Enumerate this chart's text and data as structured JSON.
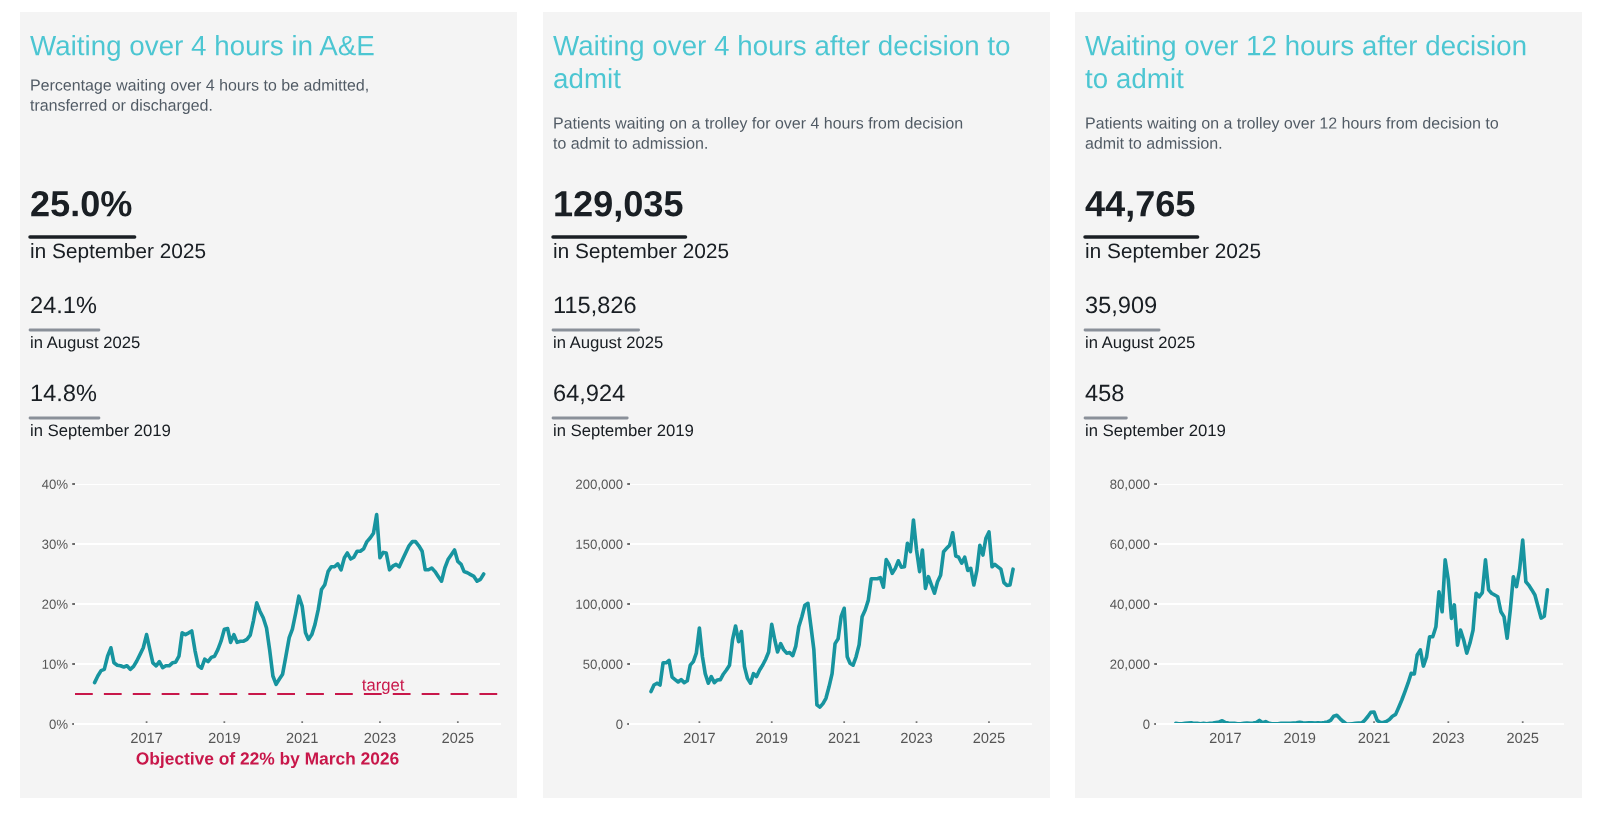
{
  "chart_data": [
    {
      "type": "line",
      "title": "Waiting over 4 hours in A&E",
      "subtitle": "Percentage waiting over 4 hours to be admitted, transferred or discharged.",
      "annotations": [
        "25.0%",
        "in September 2025",
        "24.1%",
        "in August 2025",
        "14.8%",
        "in September 2019",
        "Objective of 22% by March 2026"
      ],
      "x": [
        "2015-09",
        "2015-10",
        "2015-11",
        "2015-12",
        "2016-01",
        "2016-02",
        "2016-03",
        "2016-04",
        "2016-05",
        "2016-06",
        "2016-07",
        "2016-08",
        "2016-09",
        "2016-10",
        "2016-11",
        "2016-12",
        "2017-01",
        "2017-02",
        "2017-03",
        "2017-04",
        "2017-05",
        "2017-06",
        "2017-07",
        "2017-08",
        "2017-09",
        "2017-10",
        "2017-11",
        "2017-12",
        "2018-01",
        "2018-02",
        "2018-03",
        "2018-04",
        "2018-05",
        "2018-06",
        "2018-07",
        "2018-08",
        "2018-09",
        "2018-10",
        "2018-11",
        "2018-12",
        "2019-01",
        "2019-02",
        "2019-03",
        "2019-04",
        "2019-05",
        "2019-06",
        "2019-07",
        "2019-08",
        "2019-09",
        "2019-10",
        "2019-11",
        "2019-12",
        "2020-01",
        "2020-02",
        "2020-03",
        "2020-04",
        "2020-05",
        "2020-06",
        "2020-07",
        "2020-08",
        "2020-09",
        "2020-10",
        "2020-11",
        "2020-12",
        "2021-01",
        "2021-02",
        "2021-03",
        "2021-04",
        "2021-05",
        "2021-06",
        "2021-07",
        "2021-08",
        "2021-09",
        "2021-10",
        "2021-11",
        "2021-12",
        "2022-01",
        "2022-02",
        "2022-03",
        "2022-04",
        "2022-05",
        "2022-06",
        "2022-07",
        "2022-08",
        "2022-09",
        "2022-10",
        "2022-11",
        "2022-12",
        "2023-01",
        "2023-02",
        "2023-03",
        "2023-04",
        "2023-05",
        "2023-06",
        "2023-07",
        "2023-08",
        "2023-09",
        "2023-10",
        "2023-11",
        "2023-12",
        "2024-01",
        "2024-02",
        "2024-03",
        "2024-04",
        "2024-05",
        "2024-06",
        "2024-07",
        "2024-08",
        "2024-09",
        "2024-10",
        "2024-11",
        "2024-12",
        "2025-01",
        "2025-02",
        "2025-03",
        "2025-04",
        "2025-05",
        "2025-06",
        "2025-07",
        "2025-08",
        "2025-09"
      ],
      "series": [
        {
          "color": "#17949f",
          "values": [
            6.9,
            8.0,
            8.9,
            9.1,
            11.3,
            12.7,
            10.2,
            9.8,
            9.7,
            9.5,
            9.7,
            9.1,
            9.6,
            10.5,
            11.6,
            12.7,
            14.9,
            12.4,
            10.2,
            9.7,
            10.4,
            9.4,
            9.7,
            9.7,
            10.2,
            10.3,
            11.3,
            15.2,
            14.9,
            15.2,
            15.5,
            12.2,
            9.7,
            9.3,
            10.8,
            10.4,
            11.1,
            11.3,
            12.4,
            13.8,
            15.8,
            15.9,
            13.6,
            14.9,
            13.6,
            13.8,
            13.8,
            14.1,
            14.8,
            17.2,
            20.2,
            18.8,
            17.7,
            16.0,
            12.4,
            8.0,
            6.6,
            7.5,
            8.3,
            11.3,
            14.4,
            15.8,
            18.5,
            21.3,
            19.6,
            15.2,
            14.1,
            14.9,
            16.6,
            19.1,
            22.4,
            23.2,
            25.4,
            26.2,
            26.2,
            26.7,
            25.7,
            27.7,
            28.5,
            27.5,
            27.8,
            28.8,
            28.8,
            29.2,
            30.4,
            31.0,
            31.8,
            34.9,
            27.7,
            28.6,
            28.5,
            25.7,
            26.3,
            26.6,
            26.2,
            27.4,
            28.6,
            29.7,
            30.4,
            30.4,
            29.7,
            28.8,
            25.7,
            25.7,
            26.0,
            25.4,
            24.6,
            23.8,
            26.0,
            27.4,
            28.2,
            29.0,
            27.1,
            26.6,
            25.4,
            25.2,
            24.9,
            24.6,
            23.8,
            24.1,
            25.0
          ]
        }
      ],
      "xlim": [
        "2015-03",
        "2026-02"
      ],
      "xticks": [
        "2017",
        "2019",
        "2021",
        "2023",
        "2025"
      ],
      "ylim": [
        0,
        40
      ],
      "yticks": [
        {
          "value": 0,
          "label": "0%"
        },
        {
          "value": 10,
          "label": "10%"
        },
        {
          "value": 20,
          "label": "20%"
        },
        {
          "value": 30,
          "label": "30%"
        },
        {
          "value": 40,
          "label": "40%"
        }
      ],
      "grid": "y",
      "line_style": "solid",
      "marker": "none",
      "ref_lines": [
        {
          "axis": "y",
          "value": 5,
          "label": "target",
          "color": "#c8174a",
          "line_style": "dashed"
        }
      ]
    },
    {
      "type": "line",
      "title": "Waiting over 4 hours after decision to admit",
      "subtitle": "Patients waiting on a trolley for over 4 hours from decision to admit to admission.",
      "annotations": [
        "129,035",
        "in September 2025",
        "115,826",
        "in August 2025",
        "64,924",
        "in September 2019"
      ],
      "x": [
        "2015-09",
        "2015-10",
        "2015-11",
        "2015-12",
        "2016-01",
        "2016-02",
        "2016-03",
        "2016-04",
        "2016-05",
        "2016-06",
        "2016-07",
        "2016-08",
        "2016-09",
        "2016-10",
        "2016-11",
        "2016-12",
        "2017-01",
        "2017-02",
        "2017-03",
        "2017-04",
        "2017-05",
        "2017-06",
        "2017-07",
        "2017-08",
        "2017-09",
        "2017-10",
        "2017-11",
        "2017-12",
        "2018-01",
        "2018-02",
        "2018-03",
        "2018-04",
        "2018-05",
        "2018-06",
        "2018-07",
        "2018-08",
        "2018-09",
        "2018-10",
        "2018-11",
        "2018-12",
        "2019-01",
        "2019-02",
        "2019-03",
        "2019-04",
        "2019-05",
        "2019-06",
        "2019-07",
        "2019-08",
        "2019-09",
        "2019-10",
        "2019-11",
        "2019-12",
        "2020-01",
        "2020-02",
        "2020-03",
        "2020-04",
        "2020-05",
        "2020-06",
        "2020-07",
        "2020-08",
        "2020-09",
        "2020-10",
        "2020-11",
        "2020-12",
        "2021-01",
        "2021-02",
        "2021-03",
        "2021-04",
        "2021-05",
        "2021-06",
        "2021-07",
        "2021-08",
        "2021-09",
        "2021-10",
        "2021-11",
        "2021-12",
        "2022-01",
        "2022-02",
        "2022-03",
        "2022-04",
        "2022-05",
        "2022-06",
        "2022-07",
        "2022-08",
        "2022-09",
        "2022-10",
        "2022-11",
        "2022-12",
        "2023-01",
        "2023-02",
        "2023-03",
        "2023-04",
        "2023-05",
        "2023-06",
        "2023-07",
        "2023-08",
        "2023-09",
        "2023-10",
        "2023-11",
        "2023-12",
        "2024-01",
        "2024-02",
        "2024-03",
        "2024-04",
        "2024-05",
        "2024-06",
        "2024-07",
        "2024-08",
        "2024-09",
        "2024-10",
        "2024-11",
        "2024-12",
        "2025-01",
        "2025-02",
        "2025-03",
        "2025-04",
        "2025-05",
        "2025-06",
        "2025-07",
        "2025-08",
        "2025-09"
      ],
      "series": [
        {
          "color": "#17949f",
          "values": [
            27000,
            32500,
            34000,
            32500,
            51000,
            51000,
            53000,
            39000,
            37000,
            35000,
            37000,
            34500,
            36000,
            49000,
            52000,
            59000,
            80000,
            56000,
            42000,
            34000,
            39500,
            34500,
            36700,
            37000,
            41700,
            45000,
            49000,
            70000,
            81700,
            68600,
            77000,
            47800,
            38000,
            34000,
            42000,
            39500,
            45000,
            49000,
            54000,
            60000,
            83000,
            70000,
            60000,
            67000,
            62000,
            59000,
            59500,
            57000,
            64924,
            81000,
            89400,
            99000,
            100600,
            81000,
            62000,
            16000,
            14000,
            17000,
            21400,
            31000,
            42000,
            67000,
            71000,
            89400,
            96400,
            56000,
            50600,
            49000,
            56000,
            66000,
            89400,
            95000,
            103000,
            121000,
            121000,
            121000,
            122000,
            114000,
            137000,
            132500,
            125600,
            129700,
            136000,
            130600,
            131000,
            150600,
            143600,
            170000,
            145000,
            127000,
            145000,
            113000,
            122800,
            115800,
            109000,
            118600,
            124000,
            143600,
            146400,
            149000,
            159400,
            140000,
            139000,
            134000,
            139000,
            128000,
            129700,
            115800,
            128000,
            149000,
            140800,
            154700,
            160000,
            131000,
            133000,
            131000,
            129000,
            117800,
            115500,
            115826,
            129035
          ]
        }
      ],
      "xlim": [
        "2015-02",
        "2026-03"
      ],
      "xticks": [
        "2017",
        "2019",
        "2021",
        "2023",
        "2025"
      ],
      "ylim": [
        0,
        200000
      ],
      "yticks": [
        {
          "value": 0,
          "label": "0"
        },
        {
          "value": 50000,
          "label": "50,000"
        },
        {
          "value": 100000,
          "label": "100,000"
        },
        {
          "value": 150000,
          "label": "150,000"
        },
        {
          "value": 200000,
          "label": "200,000"
        }
      ],
      "grid": "y",
      "line_style": "solid",
      "marker": "none"
    },
    {
      "type": "line",
      "title": "Waiting over 12 hours after decision to admit",
      "subtitle": "Patients waiting on a trolley over 12 hours from decision to admit to admission.",
      "annotations": [
        "44,765",
        "in September 2025",
        "35,909",
        "in August 2025",
        "458",
        "in September 2019"
      ],
      "x": [
        "2015-09",
        "2015-10",
        "2015-11",
        "2015-12",
        "2016-01",
        "2016-02",
        "2016-03",
        "2016-04",
        "2016-05",
        "2016-06",
        "2016-07",
        "2016-08",
        "2016-09",
        "2016-10",
        "2016-11",
        "2016-12",
        "2017-01",
        "2017-02",
        "2017-03",
        "2017-04",
        "2017-05",
        "2017-06",
        "2017-07",
        "2017-08",
        "2017-09",
        "2017-10",
        "2017-11",
        "2017-12",
        "2018-01",
        "2018-02",
        "2018-03",
        "2018-04",
        "2018-05",
        "2018-06",
        "2018-07",
        "2018-08",
        "2018-09",
        "2018-10",
        "2018-11",
        "2018-12",
        "2019-01",
        "2019-02",
        "2019-03",
        "2019-04",
        "2019-05",
        "2019-06",
        "2019-07",
        "2019-08",
        "2019-09",
        "2019-10",
        "2019-11",
        "2019-12",
        "2020-01",
        "2020-02",
        "2020-03",
        "2020-04",
        "2020-05",
        "2020-06",
        "2020-07",
        "2020-08",
        "2020-09",
        "2020-10",
        "2020-11",
        "2020-12",
        "2021-01",
        "2021-02",
        "2021-03",
        "2021-04",
        "2021-05",
        "2021-06",
        "2021-07",
        "2021-08",
        "2021-09",
        "2021-10",
        "2021-11",
        "2021-12",
        "2022-01",
        "2022-02",
        "2022-03",
        "2022-04",
        "2022-05",
        "2022-06",
        "2022-07",
        "2022-08",
        "2022-09",
        "2022-10",
        "2022-11",
        "2022-12",
        "2023-01",
        "2023-02",
        "2023-03",
        "2023-04",
        "2023-05",
        "2023-06",
        "2023-07",
        "2023-08",
        "2023-09",
        "2023-10",
        "2023-11",
        "2023-12",
        "2024-01",
        "2024-02",
        "2024-03",
        "2024-04",
        "2024-05",
        "2024-06",
        "2024-07",
        "2024-08",
        "2024-09",
        "2024-10",
        "2024-11",
        "2024-12",
        "2025-01",
        "2025-02",
        "2025-03",
        "2025-04",
        "2025-05",
        "2025-06",
        "2025-07",
        "2025-08",
        "2025-09"
      ],
      "series": [
        {
          "color": "#17949f",
          "values": [
            200,
            100,
            100,
            200,
            300,
            400,
            200,
            200,
            100,
            200,
            100,
            200,
            300,
            500,
            700,
            1100,
            500,
            300,
            200,
            200,
            100,
            100,
            200,
            300,
            200,
            300,
            500,
            1200,
            400,
            800,
            300,
            100,
            100,
            100,
            200,
            200,
            200,
            200,
            300,
            400,
            600,
            400,
            300,
            400,
            400,
            300,
            400,
            300,
            458,
            700,
            1200,
            2600,
            2900,
            1800,
            900,
            100,
            0,
            100,
            200,
            300,
            300,
            1200,
            2500,
            3900,
            4000,
            1200,
            600,
            500,
            800,
            1500,
            2600,
            3200,
            5600,
            8000,
            10800,
            13600,
            16900,
            16700,
            23000,
            24700,
            19300,
            22400,
            29100,
            29100,
            32400,
            44100,
            37400,
            54700,
            48000,
            35200,
            39700,
            26300,
            31300,
            28000,
            23600,
            26900,
            31300,
            43600,
            42400,
            43800,
            54700,
            44700,
            43600,
            43000,
            42400,
            37400,
            35800,
            28600,
            38000,
            49100,
            45800,
            51300,
            61300,
            47400,
            46300,
            44700,
            43000,
            39100,
            35300,
            35909,
            44765
          ]
        }
      ],
      "xlim": [
        "2015-03",
        "2026-02"
      ],
      "xticks": [
        "2017",
        "2019",
        "2021",
        "2023",
        "2025"
      ],
      "ylim": [
        0,
        80000
      ],
      "yticks": [
        {
          "value": 0,
          "label": "0"
        },
        {
          "value": 20000,
          "label": "20,000"
        },
        {
          "value": 40000,
          "label": "40,000"
        },
        {
          "value": 60000,
          "label": "60,000"
        },
        {
          "value": 80000,
          "label": "80,000"
        }
      ],
      "grid": "y",
      "line_style": "solid",
      "marker": "none"
    }
  ]
}
